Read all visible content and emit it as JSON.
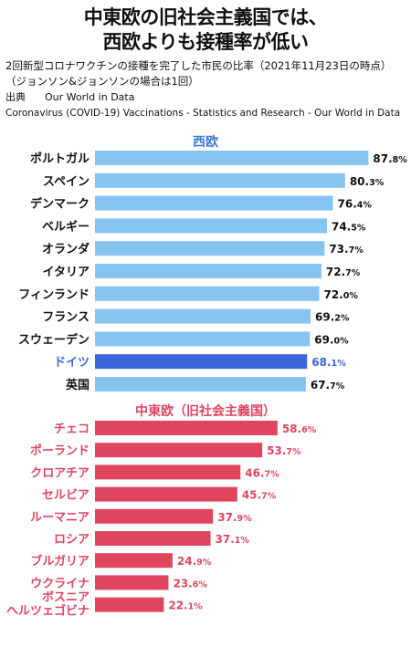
{
  "title_line1": "中東欧の旧社会主義国では、",
  "title_line2": "西欧よりも接種率が低い",
  "subtitle_line1": "2回新型コロナワクチンの接種を完了した市民の比率（2021年11月23日の時点）",
  "subtitle_line2": "（ジョンソン&ジョンソンの場合は1回）",
  "source_label": "出典",
  "source_name": "Our World in Data",
  "source_text": "Coronavirus (COVID-19) Vaccinations - Statistics and Research - Our World in Data",
  "colors": {
    "west": "#86c3ee",
    "germany": "#3c64d6",
    "germany_text": "#3c64d6",
    "east": "#e04560",
    "west_header": "#3c78d8",
    "east_header": "#e04560"
  },
  "chart_data": {
    "type": "bar",
    "orientation": "horizontal",
    "unit": "%",
    "xlim": [
      0,
      100
    ],
    "groups": [
      {
        "name": "西欧",
        "categories": [
          "ポルトガル",
          "スペイン",
          "デンマーク",
          "ベルギー",
          "オランダ",
          "イタリア",
          "フィンランド",
          "フランス",
          "スウェーデン",
          "ドイツ",
          "英国"
        ],
        "values": [
          87.8,
          80.3,
          76.4,
          74.5,
          73.7,
          72.7,
          72.0,
          69.2,
          69.0,
          68.1,
          67.7
        ],
        "highlight": "ドイツ"
      },
      {
        "name": "中東欧（旧社会主義国）",
        "categories": [
          "チェコ",
          "ポーランド",
          "クロアチア",
          "セルビア",
          "ルーマニア",
          "ロシア",
          "ブルガリア",
          "ウクライナ",
          "ボスニア\nヘルツェゴビナ"
        ],
        "values": [
          58.6,
          53.7,
          46.7,
          45.7,
          37.9,
          37.1,
          24.9,
          23.6,
          22.1
        ]
      }
    ]
  }
}
